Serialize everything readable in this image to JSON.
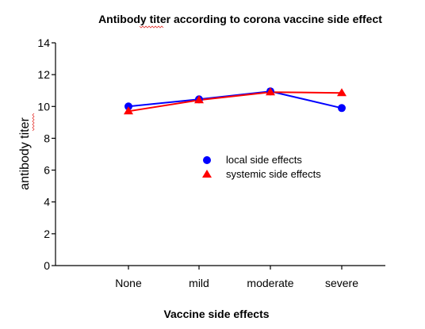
{
  "chart_data": {
    "type": "line",
    "title": "Antibody titer according to corona vaccine side effect",
    "xlabel": "Vaccine side effects",
    "ylabel": "antibody titer",
    "categories": [
      "None",
      "mild",
      "moderate",
      "severe"
    ],
    "yticks": [
      "0",
      "2",
      "4",
      "6",
      "8",
      "10",
      "12",
      "14"
    ],
    "ylim": [
      0,
      14
    ],
    "grid": false,
    "legend_position": "center-right",
    "series": [
      {
        "name": "local side effects",
        "color": "#0000ff",
        "marker": "circle",
        "values": [
          10.0,
          10.45,
          10.95,
          9.9
        ]
      },
      {
        "name": "systemic side effects",
        "color": "#ff0000",
        "marker": "triangle",
        "values": [
          9.7,
          10.4,
          10.9,
          10.85
        ]
      }
    ]
  }
}
